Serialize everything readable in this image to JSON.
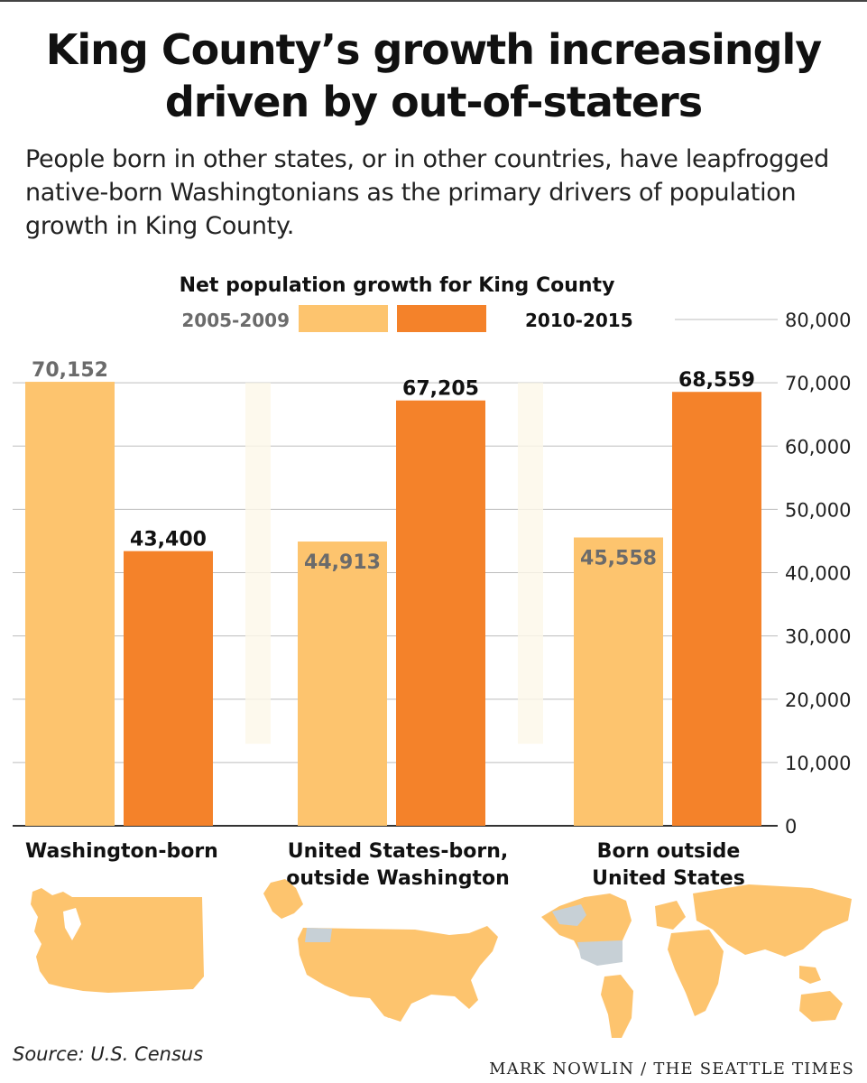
{
  "headline": "King County’s growth increasingly driven by out-of-staters",
  "subtitle": "People born in other states, or in other countries, have leapfrogged native-born Washingtonians as the primary drivers of population growth in King County.",
  "source": "Source: U.S. Census",
  "credit": "MARK NOWLIN / THE SEATTLE TIMES",
  "chart_data": {
    "type": "bar",
    "title": "Net population growth for King County",
    "categories": [
      "Washington-born",
      "United States-born, outside Washington",
      "Born outside United States"
    ],
    "category_lines": [
      [
        "Washington-born"
      ],
      [
        "United States-born,",
        "outside Washington"
      ],
      [
        "Born outside",
        "United States"
      ]
    ],
    "series": [
      {
        "name": "2005-2009",
        "values": [
          70152,
          44913,
          45558
        ],
        "labels": [
          "70,152",
          "44,913",
          "45,558"
        ],
        "color": "#fdc46e"
      },
      {
        "name": "2010-2015",
        "values": [
          43400,
          67205,
          68559
        ],
        "labels": [
          "43,400",
          "67,205",
          "68,559"
        ],
        "color": "#f4822a"
      }
    ],
    "ylim": [
      0,
      80000
    ],
    "yticks": [
      0,
      10000,
      20000,
      30000,
      40000,
      50000,
      60000,
      70000,
      80000
    ],
    "ytick_labels": [
      "0",
      "10,000",
      "20,000",
      "30,000",
      "40,000",
      "50,000",
      "60,000",
      "70,000",
      "80,000"
    ],
    "grid": true,
    "legend_position": "top",
    "colors": {
      "light_label": "#6b6b6b",
      "dark_label": "#111111",
      "grid": "#bdbdbd",
      "map_gray": "#c7d0d6"
    }
  }
}
